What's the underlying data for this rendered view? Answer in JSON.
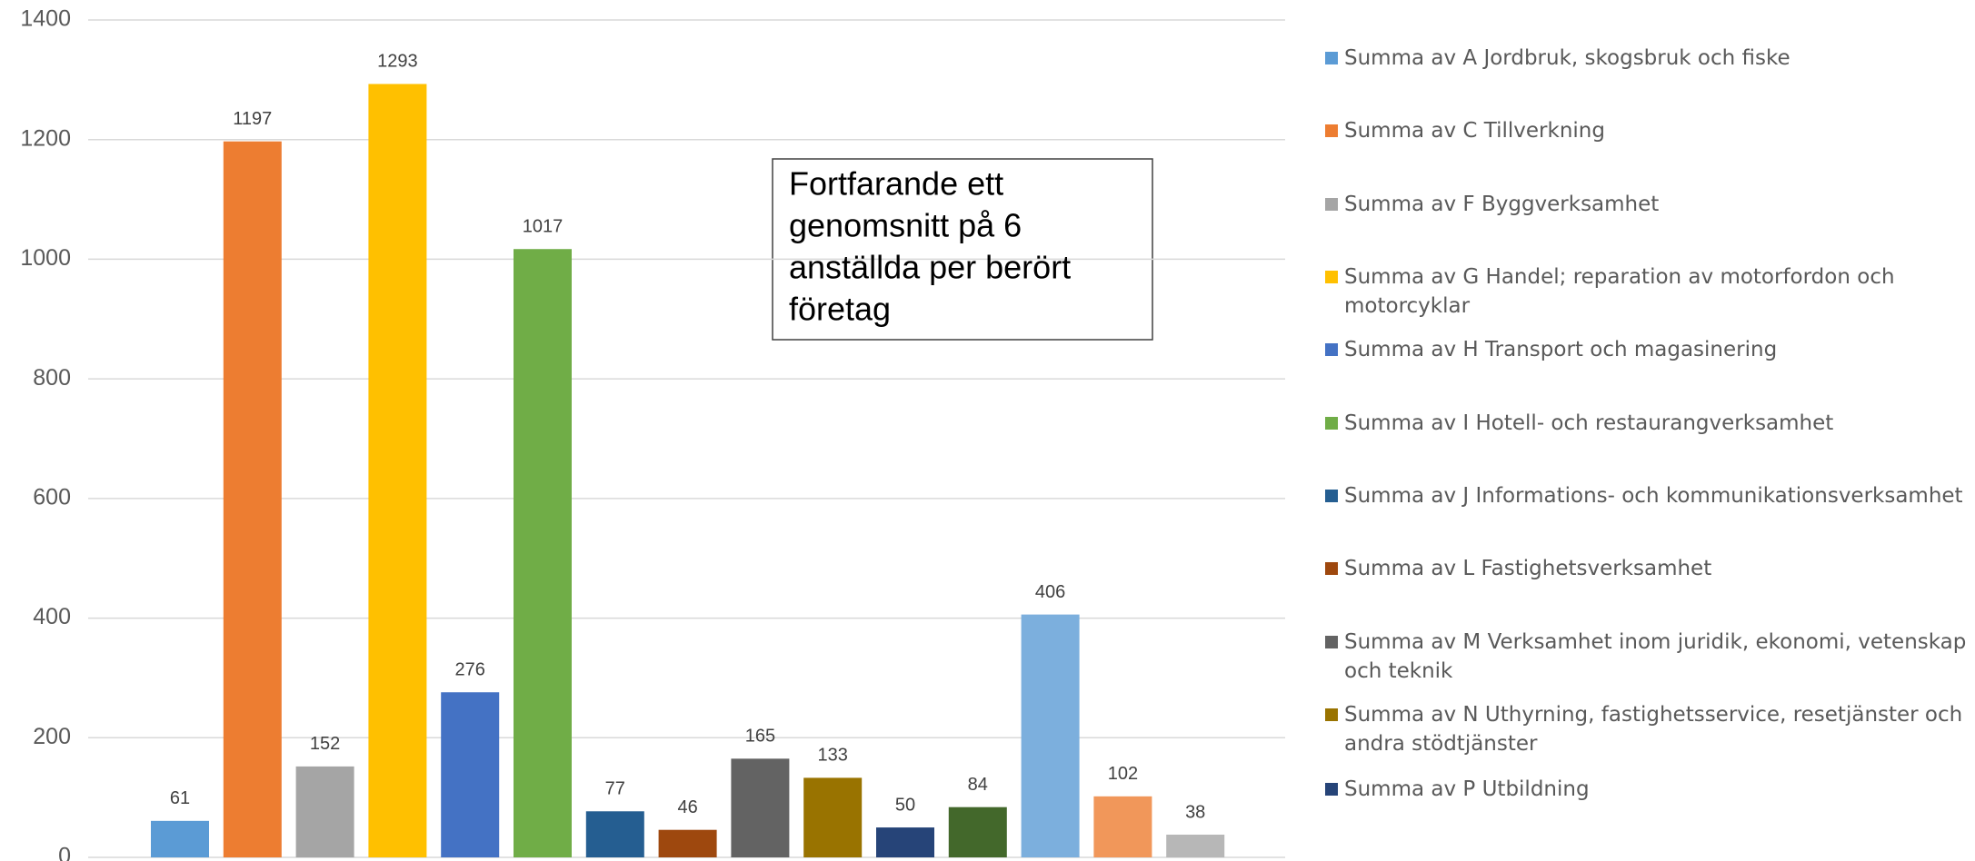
{
  "chart_data": {
    "type": "bar",
    "annotation": [
      "Fortfarande ett",
      "genomsnitt på 6",
      "anställda per berört",
      "företag"
    ],
    "ylim": [
      0,
      1400
    ],
    "yticks": [
      0,
      200,
      400,
      600,
      800,
      1000,
      1200,
      1400
    ],
    "grid": true,
    "series": [
      {
        "name": "Summa av A Jordbruk, skogsbruk och fiske",
        "color": "#5b9bd5",
        "values": [
          61
        ]
      },
      {
        "name": "Summa av C Tillverkning",
        "color": "#ed7d31",
        "values": [
          1197
        ]
      },
      {
        "name": "Summa av F Byggverksamhet",
        "color": "#a5a5a5",
        "values": [
          152
        ]
      },
      {
        "name": "Summa av G Handel; reparation av motorfordon och motorcyklar",
        "color": "#ffc000",
        "values": [
          1293
        ]
      },
      {
        "name": "Summa av H Transport och magasinering",
        "color": "#4472c4",
        "values": [
          276
        ]
      },
      {
        "name": "Summa av I Hotell- och restaurangverksamhet",
        "color": "#70ad47",
        "values": [
          1017
        ]
      },
      {
        "name": "Summa av J Informations- och kommunikationsverksamhet",
        "color": "#255e91",
        "values": [
          77
        ]
      },
      {
        "name": "Summa av L Fastighetsverksamhet",
        "color": "#9e480e",
        "values": [
          46
        ]
      },
      {
        "name": "Summa av M Verksamhet inom juridik, ekonomi, vetenskap och teknik",
        "color": "#636363",
        "values": [
          165
        ]
      },
      {
        "name": "Summa av N Uthyrning, fastighetsservice, resetjänster och andra stödtjänster",
        "color": "#997300",
        "values": [
          133
        ]
      },
      {
        "name": "Summa av P Utbildning",
        "color": "#264478",
        "values": [
          50
        ]
      },
      {
        "color": "#43682b",
        "values": [
          84
        ]
      },
      {
        "color": "#7cafdd",
        "values": [
          406
        ]
      },
      {
        "color": "#f1975a",
        "values": [
          102
        ]
      },
      {
        "color": "#b7b7b7",
        "values": [
          38
        ]
      }
    ]
  }
}
